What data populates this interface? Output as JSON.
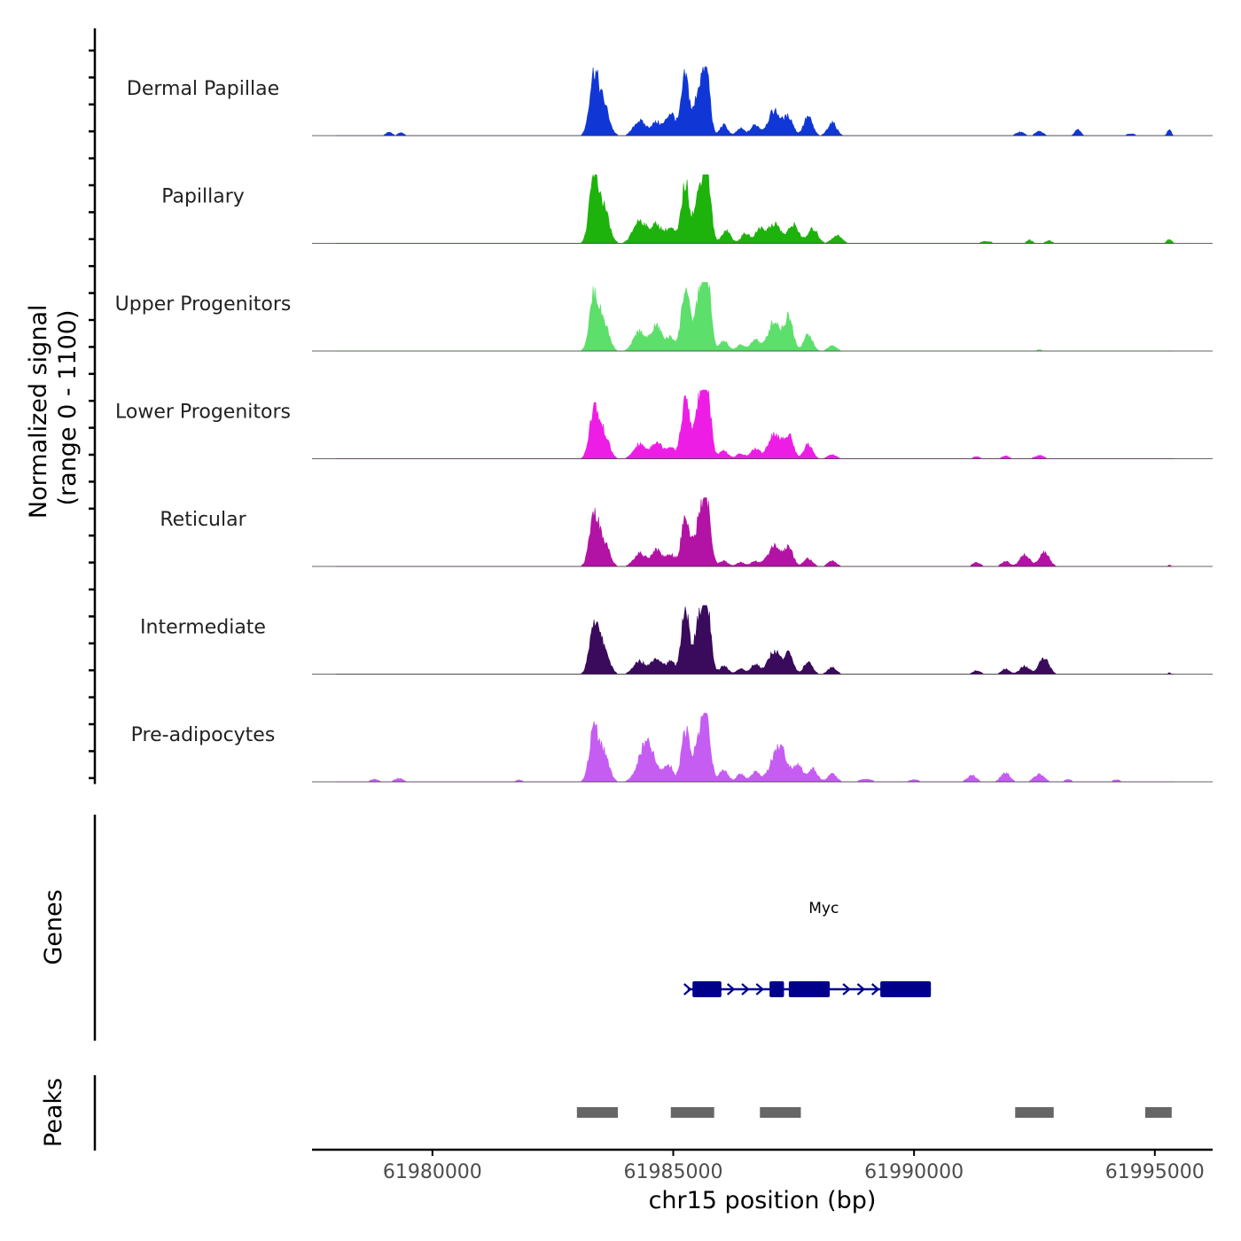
{
  "chart_data": {
    "type": "area",
    "chromosome": "chr15",
    "xlabel": "chr15 position (bp)",
    "xlim": [
      61977500,
      61996200
    ],
    "x_ticks": [
      61980000,
      61985000,
      61990000,
      61995000
    ],
    "x_tick_labels": [
      "61980000",
      "61985000",
      "61990000",
      "61995000"
    ],
    "signal_ylabel": "Normalized signal\n(range 0 - 1100)",
    "signal_ylabel_lines": [
      "Normalized signal",
      "(range 0 - 1100)"
    ],
    "signal_range": [
      0,
      1100
    ],
    "genes_ylabel": "Genes",
    "peaks_ylabel": "Peaks",
    "series": [
      {
        "name": "Dermal Papillae",
        "color": "#1037d6",
        "scale": 0.9,
        "peaks": [
          [
            61979100,
            60,
            0.06
          ],
          [
            61979350,
            60,
            0.05
          ],
          [
            61983350,
            90,
            1.0
          ],
          [
            61983550,
            110,
            0.55
          ],
          [
            61984300,
            120,
            0.25
          ],
          [
            61984650,
            110,
            0.22
          ],
          [
            61984950,
            100,
            0.38
          ],
          [
            61985250,
            80,
            1.0
          ],
          [
            61985550,
            100,
            0.85
          ],
          [
            61985700,
            70,
            0.9
          ],
          [
            61986050,
            80,
            0.18
          ],
          [
            61986400,
            80,
            0.12
          ],
          [
            61986700,
            90,
            0.18
          ],
          [
            61987100,
            130,
            0.42
          ],
          [
            61987400,
            90,
            0.3
          ],
          [
            61987800,
            90,
            0.32
          ],
          [
            61988300,
            90,
            0.22
          ],
          [
            61992200,
            80,
            0.06
          ],
          [
            61992600,
            80,
            0.07
          ],
          [
            61993400,
            60,
            0.1
          ],
          [
            61994500,
            90,
            0.03
          ],
          [
            61995300,
            40,
            0.1
          ]
        ]
      },
      {
        "name": "Papillary",
        "color": "#1eb20c",
        "scale": 1.0,
        "peaks": [
          [
            61983350,
            90,
            0.95
          ],
          [
            61983550,
            110,
            0.55
          ],
          [
            61984300,
            130,
            0.35
          ],
          [
            61984650,
            120,
            0.28
          ],
          [
            61984950,
            100,
            0.22
          ],
          [
            61985250,
            80,
            0.9
          ],
          [
            61985550,
            110,
            0.75
          ],
          [
            61985700,
            80,
            0.95
          ],
          [
            61986100,
            90,
            0.2
          ],
          [
            61986500,
            90,
            0.15
          ],
          [
            61986800,
            90,
            0.22
          ],
          [
            61987100,
            130,
            0.3
          ],
          [
            61987500,
            110,
            0.28
          ],
          [
            61987900,
            100,
            0.22
          ],
          [
            61988400,
            100,
            0.12
          ],
          [
            61991500,
            110,
            0.03
          ],
          [
            61992400,
            60,
            0.05
          ],
          [
            61992800,
            70,
            0.04
          ],
          [
            61995300,
            50,
            0.06
          ]
        ]
      },
      {
        "name": "Upper Progenitors",
        "color": "#5ddf6b",
        "scale": 1.0,
        "peaks": [
          [
            61983350,
            90,
            0.8
          ],
          [
            61983550,
            110,
            0.45
          ],
          [
            61984300,
            120,
            0.3
          ],
          [
            61984650,
            110,
            0.38
          ],
          [
            61984950,
            100,
            0.2
          ],
          [
            61985250,
            80,
            0.95
          ],
          [
            61985550,
            110,
            0.8
          ],
          [
            61985700,
            80,
            1.0
          ],
          [
            61986050,
            90,
            0.15
          ],
          [
            61986400,
            80,
            0.1
          ],
          [
            61986700,
            90,
            0.18
          ],
          [
            61987100,
            130,
            0.45
          ],
          [
            61987400,
            90,
            0.5
          ],
          [
            61987800,
            90,
            0.25
          ],
          [
            61988300,
            90,
            0.08
          ],
          [
            61992600,
            70,
            0.02
          ]
        ]
      },
      {
        "name": "Lower Progenitors",
        "color": "#ee1de6",
        "scale": 1.0,
        "peaks": [
          [
            61983350,
            90,
            0.72
          ],
          [
            61983550,
            110,
            0.4
          ],
          [
            61984300,
            120,
            0.22
          ],
          [
            61984650,
            110,
            0.26
          ],
          [
            61984950,
            100,
            0.18
          ],
          [
            61985250,
            80,
            0.9
          ],
          [
            61985550,
            110,
            0.85
          ],
          [
            61985700,
            80,
            0.95
          ],
          [
            61986050,
            90,
            0.12
          ],
          [
            61986400,
            80,
            0.08
          ],
          [
            61986700,
            90,
            0.15
          ],
          [
            61987100,
            130,
            0.38
          ],
          [
            61987400,
            90,
            0.36
          ],
          [
            61987800,
            90,
            0.22
          ],
          [
            61988300,
            90,
            0.06
          ],
          [
            61991300,
            80,
            0.03
          ],
          [
            61991900,
            80,
            0.04
          ],
          [
            61992600,
            90,
            0.05
          ]
        ]
      },
      {
        "name": "Reticular",
        "color": "#b313a4",
        "scale": 1.0,
        "peaks": [
          [
            61983350,
            90,
            0.75
          ],
          [
            61983550,
            110,
            0.4
          ],
          [
            61984300,
            120,
            0.2
          ],
          [
            61984650,
            110,
            0.25
          ],
          [
            61984950,
            100,
            0.18
          ],
          [
            61985250,
            80,
            0.75
          ],
          [
            61985550,
            110,
            0.7
          ],
          [
            61985700,
            80,
            0.8
          ],
          [
            61986050,
            90,
            0.08
          ],
          [
            61986400,
            80,
            0.06
          ],
          [
            61986700,
            90,
            0.08
          ],
          [
            61987100,
            130,
            0.32
          ],
          [
            61987400,
            90,
            0.28
          ],
          [
            61987800,
            90,
            0.12
          ],
          [
            61988300,
            90,
            0.08
          ],
          [
            61991300,
            80,
            0.06
          ],
          [
            61991900,
            80,
            0.08
          ],
          [
            61992300,
            100,
            0.18
          ],
          [
            61992700,
            100,
            0.22
          ],
          [
            61995300,
            40,
            0.02
          ]
        ]
      },
      {
        "name": "Intermediate",
        "color": "#3a0a5c",
        "scale": 1.0,
        "peaks": [
          [
            61983350,
            90,
            0.75
          ],
          [
            61983550,
            110,
            0.42
          ],
          [
            61984300,
            120,
            0.2
          ],
          [
            61984650,
            110,
            0.25
          ],
          [
            61984950,
            100,
            0.18
          ],
          [
            61985250,
            80,
            0.95
          ],
          [
            61985550,
            110,
            0.8
          ],
          [
            61985700,
            80,
            0.85
          ],
          [
            61986050,
            90,
            0.12
          ],
          [
            61986400,
            80,
            0.08
          ],
          [
            61986700,
            90,
            0.15
          ],
          [
            61987100,
            130,
            0.35
          ],
          [
            61987400,
            90,
            0.3
          ],
          [
            61987800,
            90,
            0.18
          ],
          [
            61988300,
            90,
            0.1
          ],
          [
            61991300,
            80,
            0.05
          ],
          [
            61991900,
            80,
            0.08
          ],
          [
            61992300,
            100,
            0.12
          ],
          [
            61992700,
            100,
            0.25
          ],
          [
            61995300,
            40,
            0.02
          ]
        ]
      },
      {
        "name": "Pre-adipocytes",
        "color": "#c65df2",
        "scale": 1.0,
        "peaks": [
          [
            61978800,
            80,
            0.04
          ],
          [
            61979300,
            90,
            0.05
          ],
          [
            61981800,
            60,
            0.03
          ],
          [
            61983350,
            90,
            0.78
          ],
          [
            61983550,
            110,
            0.45
          ],
          [
            61984450,
            160,
            0.6
          ],
          [
            61984900,
            100,
            0.25
          ],
          [
            61985250,
            80,
            0.8
          ],
          [
            61985550,
            110,
            0.7
          ],
          [
            61985700,
            80,
            0.78
          ],
          [
            61986050,
            90,
            0.18
          ],
          [
            61986400,
            80,
            0.12
          ],
          [
            61986700,
            90,
            0.15
          ],
          [
            61987200,
            160,
            0.55
          ],
          [
            61987600,
            90,
            0.25
          ],
          [
            61987900,
            90,
            0.2
          ],
          [
            61988300,
            90,
            0.12
          ],
          [
            61989000,
            120,
            0.04
          ],
          [
            61990000,
            100,
            0.03
          ],
          [
            61991200,
            90,
            0.1
          ],
          [
            61991900,
            90,
            0.15
          ],
          [
            61992600,
            100,
            0.12
          ],
          [
            61993200,
            60,
            0.04
          ],
          [
            61994200,
            80,
            0.03
          ]
        ]
      }
    ],
    "gene": {
      "name": "Myc",
      "strand": "+",
      "start": 61985300,
      "end": 61990350,
      "exons": [
        [
          61985400,
          61986000
        ],
        [
          61987000,
          61987300
        ],
        [
          61987400,
          61988250
        ],
        [
          61989300,
          61990350
        ]
      ]
    },
    "peaks_track": [
      [
        61983000,
        61983850
      ],
      [
        61984950,
        61985850
      ],
      [
        61986800,
        61987650
      ],
      [
        61992100,
        61992900
      ],
      [
        61994800,
        61995350
      ]
    ],
    "colors": {
      "axis": "#000000",
      "gene": "#00008b",
      "peak": "#666666",
      "baseline": "#333333"
    }
  }
}
